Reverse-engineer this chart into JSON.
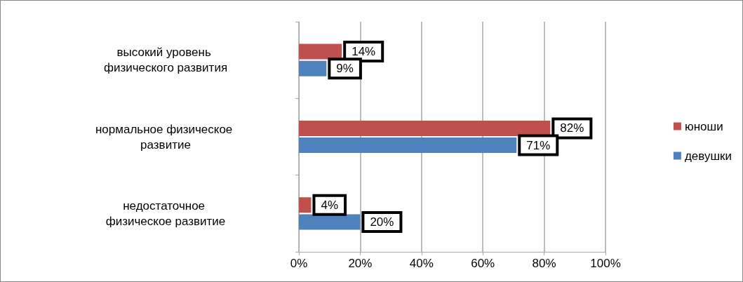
{
  "chart_data": {
    "type": "bar",
    "orientation": "horizontal",
    "categories": [
      "высокий уровень физического развития",
      "нормальное физическое развитие",
      "недостаточное физическое развитие"
    ],
    "series": [
      {
        "name": "юноши",
        "color": "#c0504d",
        "values": [
          14,
          82,
          4
        ],
        "value_labels": [
          "14%",
          "82%",
          "4%"
        ]
      },
      {
        "name": "девушки",
        "color": "#4f81bd",
        "values": [
          9,
          71,
          20
        ],
        "value_labels": [
          "9%",
          "71%",
          "20%"
        ]
      }
    ],
    "xlim": [
      0,
      100
    ],
    "xticks": [
      {
        "value": 0,
        "label": "0%"
      },
      {
        "value": 20,
        "label": "20%"
      },
      {
        "value": 40,
        "label": "40%"
      },
      {
        "value": 60,
        "label": "60%"
      },
      {
        "value": 80,
        "label": "80%"
      },
      {
        "value": 100,
        "label": "100%"
      }
    ],
    "grid": "x",
    "legend": "right"
  }
}
